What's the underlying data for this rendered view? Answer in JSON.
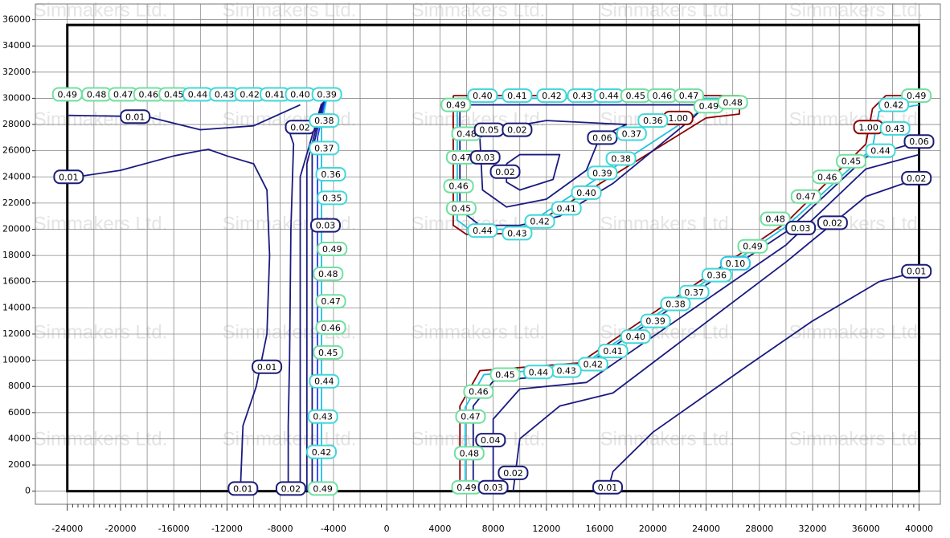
{
  "chart_data": {
    "type": "contour",
    "watermark": "Simmakers Ltd.",
    "xlim": [
      -26400,
      41600
    ],
    "ylim": [
      -1000,
      37200
    ],
    "xticks": [
      -24000,
      -20000,
      -16000,
      -12000,
      -8000,
      -4000,
      0,
      4000,
      8000,
      12000,
      16000,
      20000,
      24000,
      28000,
      32000,
      36000,
      40000
    ],
    "yticks": [
      0,
      2000,
      4000,
      6000,
      8000,
      10000,
      12000,
      14000,
      16000,
      18000,
      20000,
      22000,
      24000,
      26000,
      28000,
      30000,
      32000,
      34000,
      36000
    ],
    "grid": true,
    "boundary": {
      "x": [
        -24000,
        40000
      ],
      "y": [
        0,
        35600
      ]
    },
    "colorscale": [
      [
        0,
        "#1c1c78"
      ],
      [
        0.1,
        "#30c8e8"
      ],
      [
        0.35,
        "#40d8d8"
      ],
      [
        0.45,
        "#70e0a0"
      ],
      [
        0.9,
        "#8b0000"
      ]
    ],
    "lines": [
      {
        "color": "#1a1a80",
        "x": [
          -24000,
          -18000,
          -14000,
          -10000,
          -6500
        ],
        "y": [
          28700,
          28600,
          27600,
          27900,
          29500
        ]
      },
      {
        "color": "#1a1a80",
        "x": [
          -24000,
          -20000,
          -16000,
          -14000,
          -13400,
          -12000,
          -10000,
          -9000,
          -8800,
          -9000,
          -9800,
          -10800,
          -11000
        ],
        "y": [
          23900,
          24500,
          25600,
          26000,
          26100,
          25600,
          25000,
          23000,
          18000,
          12000,
          8000,
          5000,
          0
        ]
      },
      {
        "color": "#1a1a80",
        "x": [
          -7500,
          -7000,
          -7200,
          -7300,
          -7400,
          -7400
        ],
        "y": [
          28000,
          26500,
          20000,
          10000,
          5000,
          0
        ]
      },
      {
        "color": "#1a1a80",
        "x": [
          -6500,
          -6500,
          -4900
        ],
        "y": [
          0,
          24000,
          29600
        ]
      },
      {
        "color": "#1a1a80",
        "x": [
          -6000,
          -6000,
          -4800
        ],
        "y": [
          0,
          25000,
          29700
        ]
      },
      {
        "color": "#1a1a80",
        "x": [
          -5600,
          -5600,
          -4700
        ],
        "y": [
          0,
          26000,
          29800
        ]
      },
      {
        "color": "#2040ff",
        "x": [
          -5200,
          -5200,
          -4600
        ],
        "y": [
          0,
          27000,
          29900
        ]
      },
      {
        "color": "#20c0e0",
        "x": [
          -4900,
          -4900,
          -4500
        ],
        "y": [
          0,
          28000,
          30000
        ]
      },
      {
        "color": "#1a1a80",
        "x": [
          -24000,
          -4500
        ],
        "y": [
          30200,
          30200
        ]
      },
      {
        "color": "#8b0000",
        "x": [
          5000,
          26500,
          26500,
          24000,
          10000,
          6000,
          5000,
          5000
        ],
        "y": [
          30200,
          30200,
          28800,
          28500,
          19700,
          19600,
          20300,
          30200
        ]
      },
      {
        "color": "#20c0e0",
        "x": [
          5300,
          25500,
          23500,
          10000,
          6200,
          5300,
          5300
        ],
        "y": [
          30000,
          30000,
          29000,
          20000,
          20000,
          20700,
          30000
        ]
      },
      {
        "color": "#1a1a80",
        "x": [
          5500,
          24000,
          23000,
          20000,
          17000,
          13000,
          10000,
          7000,
          5500,
          5500
        ],
        "y": [
          29500,
          29500,
          28500,
          26000,
          23500,
          21000,
          20300,
          20300,
          21500,
          29500
        ]
      },
      {
        "color": "#1a1a80",
        "x": [
          7000,
          7200,
          9000,
          12000,
          15000,
          16000,
          18000,
          12000,
          8000,
          7000
        ],
        "y": [
          27000,
          23000,
          21700,
          22300,
          24500,
          27000,
          28000,
          28300,
          27600,
          27000
        ]
      },
      {
        "color": "#1a1a80",
        "x": [
          9000,
          10000,
          13000,
          12500,
          10000,
          9000,
          9000
        ],
        "y": [
          25000,
          25700,
          25700,
          23800,
          23000,
          23600,
          25000
        ]
      },
      {
        "color": "#8b0000",
        "x": [
          5500,
          5500,
          7000,
          14500,
          30000,
          36000,
          36500,
          37500,
          40000
        ],
        "y": [
          0,
          6500,
          9200,
          9800,
          20500,
          26500,
          29200,
          30200,
          30200
        ]
      },
      {
        "color": "#20c0e0",
        "x": [
          5900,
          5900,
          7300,
          14500,
          30000,
          36500,
          37000,
          40000
        ],
        "y": [
          0,
          6400,
          8900,
          9500,
          20200,
          26200,
          29000,
          29500
        ]
      },
      {
        "color": "#1a1a80",
        "x": [
          6500,
          6500,
          8000,
          14000,
          30000,
          36000,
          40000
        ],
        "y": [
          0,
          6500,
          8400,
          9000,
          19800,
          25500,
          26700
        ]
      },
      {
        "color": "#1a1a80",
        "x": [
          8000,
          8000,
          10000,
          15000,
          30000,
          36000,
          40000
        ],
        "y": [
          0,
          5500,
          7800,
          8300,
          18800,
          24600,
          25700
        ]
      },
      {
        "color": "#1a1a80",
        "x": [
          9500,
          10000,
          13000,
          17000,
          30000,
          36000,
          40000
        ],
        "y": [
          0,
          4000,
          6500,
          7500,
          17500,
          22500,
          23900
        ]
      },
      {
        "color": "#1a1a80",
        "x": [
          16600,
          17000,
          20000,
          27000,
          32000,
          37000,
          40000
        ],
        "y": [
          0,
          1500,
          4500,
          9500,
          13000,
          16000,
          16800
        ]
      }
    ],
    "labels": [
      {
        "x": -24000,
        "y": 30300,
        "value": 0.49,
        "label": "0.49"
      },
      {
        "x": -21800,
        "y": 30300,
        "value": 0.48,
        "label": "0.48"
      },
      {
        "x": -19800,
        "y": 30300,
        "value": 0.47,
        "label": "0.47"
      },
      {
        "x": -17900,
        "y": 30300,
        "value": 0.46,
        "label": "0.46"
      },
      {
        "x": -16000,
        "y": 30300,
        "value": 0.45,
        "label": "0.45"
      },
      {
        "x": -14200,
        "y": 30300,
        "value": 0.44,
        "label": "0.44"
      },
      {
        "x": -12200,
        "y": 30300,
        "value": 0.43,
        "label": "0.43"
      },
      {
        "x": -10300,
        "y": 30300,
        "value": 0.42,
        "label": "0.42"
      },
      {
        "x": -8400,
        "y": 30300,
        "value": 0.41,
        "label": "0.41"
      },
      {
        "x": -6500,
        "y": 30300,
        "value": 0.4,
        "label": "0.40"
      },
      {
        "x": -4500,
        "y": 30300,
        "value": 0.39,
        "label": "0.39"
      },
      {
        "x": -18900,
        "y": 28600,
        "value": 0.01,
        "label": "0.01"
      },
      {
        "x": -23900,
        "y": 24000,
        "value": 0.01,
        "label": "0.01"
      },
      {
        "x": -6500,
        "y": 27800,
        "value": 0.02,
        "label": "0.02"
      },
      {
        "x": -4700,
        "y": 28300,
        "value": 0.38,
        "label": "0.38"
      },
      {
        "x": -4700,
        "y": 26200,
        "value": 0.37,
        "label": "0.37"
      },
      {
        "x": -4200,
        "y": 24200,
        "value": 0.36,
        "label": "0.36"
      },
      {
        "x": -4100,
        "y": 22400,
        "value": 0.35,
        "label": "0.35"
      },
      {
        "x": -4600,
        "y": 20300,
        "value": 0.03,
        "label": "0.03"
      },
      {
        "x": -4100,
        "y": 18500,
        "value": 0.49,
        "label": "0.49"
      },
      {
        "x": -4400,
        "y": 16600,
        "value": 0.48,
        "label": "0.48"
      },
      {
        "x": -4200,
        "y": 14500,
        "value": 0.47,
        "label": "0.47"
      },
      {
        "x": -4200,
        "y": 12500,
        "value": 0.46,
        "label": "0.46"
      },
      {
        "x": -4400,
        "y": 10600,
        "value": 0.45,
        "label": "0.45"
      },
      {
        "x": -4700,
        "y": 8400,
        "value": 0.44,
        "label": "0.44"
      },
      {
        "x": -4800,
        "y": 5700,
        "value": 0.43,
        "label": "0.43"
      },
      {
        "x": -4900,
        "y": 3000,
        "value": 0.42,
        "label": "0.42"
      },
      {
        "x": -4800,
        "y": 200,
        "value": 0.49,
        "label": "0.49"
      },
      {
        "x": -7200,
        "y": 200,
        "value": 0.02,
        "label": "0.02"
      },
      {
        "x": -10800,
        "y": 200,
        "value": 0.01,
        "label": "0.01"
      },
      {
        "x": -9000,
        "y": 9500,
        "value": 0.01,
        "label": "0.01"
      },
      {
        "x": 7200,
        "y": 30200,
        "value": 0.4,
        "label": "0.40"
      },
      {
        "x": 9800,
        "y": 30200,
        "value": 0.41,
        "label": "0.41"
      },
      {
        "x": 12400,
        "y": 30200,
        "value": 0.42,
        "label": "0.42"
      },
      {
        "x": 14700,
        "y": 30200,
        "value": 0.43,
        "label": "0.43"
      },
      {
        "x": 16700,
        "y": 30200,
        "value": 0.44,
        "label": "0.44"
      },
      {
        "x": 18700,
        "y": 30200,
        "value": 0.45,
        "label": "0.45"
      },
      {
        "x": 20700,
        "y": 30200,
        "value": 0.46,
        "label": "0.46"
      },
      {
        "x": 22700,
        "y": 30200,
        "value": 0.47,
        "label": "0.47"
      },
      {
        "x": 24200,
        "y": 29400,
        "value": 0.49,
        "label": "0.49"
      },
      {
        "x": 26000,
        "y": 29700,
        "value": 0.48,
        "label": "0.48"
      },
      {
        "x": 21900,
        "y": 28500,
        "value": 1,
        "label": "1.00"
      },
      {
        "x": 5200,
        "y": 29500,
        "value": 0.49,
        "label": "0.49"
      },
      {
        "x": 6000,
        "y": 27300,
        "value": 0.48,
        "label": "0.48"
      },
      {
        "x": 7700,
        "y": 27600,
        "value": 0.05,
        "label": "0.05"
      },
      {
        "x": 9800,
        "y": 27600,
        "value": 0.02,
        "label": "0.02"
      },
      {
        "x": 5600,
        "y": 25500,
        "value": 0.47,
        "label": "0.47"
      },
      {
        "x": 7400,
        "y": 25500,
        "value": 0.03,
        "label": "0.03"
      },
      {
        "x": 8900,
        "y": 24400,
        "value": 0.02,
        "label": "0.02"
      },
      {
        "x": 16200,
        "y": 27000,
        "value": 0.06,
        "label": "0.06"
      },
      {
        "x": 18400,
        "y": 27300,
        "value": 0.37,
        "label": "0.37"
      },
      {
        "x": 20000,
        "y": 28300,
        "value": 0.36,
        "label": "0.36"
      },
      {
        "x": 17600,
        "y": 25400,
        "value": 0.38,
        "label": "0.38"
      },
      {
        "x": 16200,
        "y": 24300,
        "value": 0.39,
        "label": "0.39"
      },
      {
        "x": 15000,
        "y": 22800,
        "value": 0.4,
        "label": "0.40"
      },
      {
        "x": 13500,
        "y": 21600,
        "value": 0.41,
        "label": "0.41"
      },
      {
        "x": 11500,
        "y": 20600,
        "value": 0.42,
        "label": "0.42"
      },
      {
        "x": 9800,
        "y": 19700,
        "value": 0.43,
        "label": "0.43"
      },
      {
        "x": 7200,
        "y": 19900,
        "value": 0.44,
        "label": "0.44"
      },
      {
        "x": 5400,
        "y": 23300,
        "value": 0.46,
        "label": "0.46"
      },
      {
        "x": 5600,
        "y": 21600,
        "value": 0.45,
        "label": "0.45"
      },
      {
        "x": 39800,
        "y": 30200,
        "value": 0.49,
        "label": "0.49"
      },
      {
        "x": 38100,
        "y": 29500,
        "value": 0.42,
        "label": "0.42"
      },
      {
        "x": 36200,
        "y": 27800,
        "value": 1,
        "label": "1.00"
      },
      {
        "x": 38200,
        "y": 27700,
        "value": 0.43,
        "label": "0.43"
      },
      {
        "x": 40000,
        "y": 26700,
        "value": 0.06,
        "label": "0.06"
      },
      {
        "x": 37100,
        "y": 26000,
        "value": 0.44,
        "label": "0.44"
      },
      {
        "x": 34900,
        "y": 25200,
        "value": 0.45,
        "label": "0.45"
      },
      {
        "x": 33100,
        "y": 24000,
        "value": 0.46,
        "label": "0.46"
      },
      {
        "x": 31500,
        "y": 22500,
        "value": 0.47,
        "label": "0.47"
      },
      {
        "x": 29200,
        "y": 20800,
        "value": 0.48,
        "label": "0.48"
      },
      {
        "x": 27500,
        "y": 18700,
        "value": 0.49,
        "label": "0.49"
      },
      {
        "x": 31100,
        "y": 20100,
        "value": 0.03,
        "label": "0.03"
      },
      {
        "x": 33500,
        "y": 20500,
        "value": 0.02,
        "label": "0.02"
      },
      {
        "x": 39800,
        "y": 23900,
        "value": 0.02,
        "label": "0.02"
      },
      {
        "x": 26200,
        "y": 17400,
        "value": 0.1,
        "label": "0.10"
      },
      {
        "x": 24800,
        "y": 16500,
        "value": 0.36,
        "label": "0.36"
      },
      {
        "x": 23100,
        "y": 15200,
        "value": 0.37,
        "label": "0.37"
      },
      {
        "x": 21700,
        "y": 14300,
        "value": 0.38,
        "label": "0.38"
      },
      {
        "x": 20200,
        "y": 13000,
        "value": 0.39,
        "label": "0.39"
      },
      {
        "x": 18700,
        "y": 11800,
        "value": 0.4,
        "label": "0.40"
      },
      {
        "x": 17000,
        "y": 10700,
        "value": 0.41,
        "label": "0.41"
      },
      {
        "x": 15500,
        "y": 9700,
        "value": 0.42,
        "label": "0.42"
      },
      {
        "x": 13500,
        "y": 9200,
        "value": 0.43,
        "label": "0.43"
      },
      {
        "x": 11400,
        "y": 9100,
        "value": 0.44,
        "label": "0.44"
      },
      {
        "x": 8900,
        "y": 8900,
        "value": 0.45,
        "label": "0.45"
      },
      {
        "x": 6900,
        "y": 7600,
        "value": 0.46,
        "label": "0.46"
      },
      {
        "x": 6300,
        "y": 5700,
        "value": 0.47,
        "label": "0.47"
      },
      {
        "x": 7800,
        "y": 3900,
        "value": 0.04,
        "label": "0.04"
      },
      {
        "x": 6200,
        "y": 2900,
        "value": 0.48,
        "label": "0.48"
      },
      {
        "x": 6000,
        "y": 300,
        "value": 0.49,
        "label": "0.49"
      },
      {
        "x": 8000,
        "y": 300,
        "value": 0.03,
        "label": "0.03"
      },
      {
        "x": 9500,
        "y": 1400,
        "value": 0.02,
        "label": "0.02"
      },
      {
        "x": 16600,
        "y": 300,
        "value": 0.01,
        "label": "0.01"
      },
      {
        "x": 39800,
        "y": 16800,
        "value": 0.01,
        "label": "0.01"
      }
    ]
  }
}
